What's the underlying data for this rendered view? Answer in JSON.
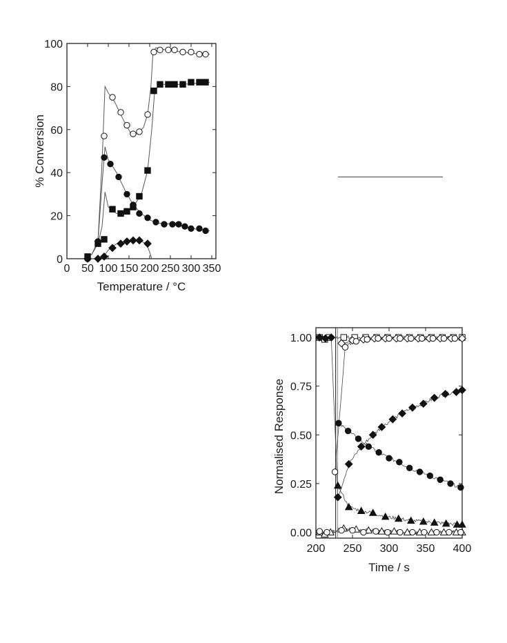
{
  "chart_data": [
    {
      "type": "line",
      "title": "",
      "xlabel": "Temperature / °C",
      "ylabel": "% Conversion",
      "xlim": [
        0,
        360
      ],
      "ylim": [
        0,
        100
      ],
      "xticks": [
        0,
        50,
        100,
        150,
        200,
        250,
        300,
        350
      ],
      "yticks": [
        0,
        20,
        40,
        60,
        80,
        100
      ],
      "series": [
        {
          "marker": "open-circle",
          "points": [
            [
              50,
              0
            ],
            [
              75,
              8
            ],
            [
              90,
              57
            ],
            [
              110,
              75
            ],
            [
              130,
              68
            ],
            [
              145,
              62
            ],
            [
              160,
              58
            ],
            [
              175,
              59
            ],
            [
              195,
              67
            ],
            [
              210,
              96
            ],
            [
              225,
              97
            ],
            [
              245,
              97
            ],
            [
              260,
              97
            ],
            [
              280,
              96
            ],
            [
              300,
              96
            ],
            [
              320,
              95
            ],
            [
              335,
              95
            ]
          ],
          "curve": [
            [
              40,
              0
            ],
            [
              60,
              2
            ],
            [
              75,
              8
            ],
            [
              85,
              45
            ],
            [
              92,
              80
            ],
            [
              100,
              77
            ],
            [
              115,
              73
            ],
            [
              135,
              65
            ],
            [
              155,
              58
            ],
            [
              170,
              58
            ],
            [
              185,
              61
            ],
            [
              195,
              67
            ],
            [
              203,
              80
            ],
            [
              208,
              96
            ],
            [
              215,
              98
            ],
            [
              240,
              97
            ],
            [
              280,
              96
            ],
            [
              320,
              95
            ],
            [
              345,
              95
            ]
          ]
        },
        {
          "marker": "filled-square",
          "points": [
            [
              50,
              1
            ],
            [
              75,
              7
            ],
            [
              90,
              9
            ],
            [
              110,
              23
            ],
            [
              130,
              21
            ],
            [
              145,
              22
            ],
            [
              160,
              24
            ],
            [
              175,
              29
            ],
            [
              195,
              41
            ],
            [
              210,
              78
            ],
            [
              225,
              81
            ],
            [
              245,
              81
            ],
            [
              260,
              81
            ],
            [
              280,
              81
            ],
            [
              300,
              82
            ],
            [
              320,
              82
            ],
            [
              335,
              82
            ]
          ],
          "curve": [
            [
              40,
              0
            ],
            [
              60,
              2
            ],
            [
              75,
              7
            ],
            [
              85,
              15
            ],
            [
              92,
              31
            ],
            [
              100,
              24
            ],
            [
              120,
              21
            ],
            [
              140,
              22
            ],
            [
              160,
              24
            ],
            [
              180,
              30
            ],
            [
              195,
              41
            ],
            [
              205,
              60
            ],
            [
              212,
              78
            ],
            [
              225,
              81
            ],
            [
              280,
              81
            ],
            [
              345,
              82
            ]
          ]
        },
        {
          "marker": "filled-circle",
          "points": [
            [
              50,
              0
            ],
            [
              75,
              8
            ],
            [
              90,
              47
            ],
            [
              105,
              44
            ],
            [
              125,
              38
            ],
            [
              145,
              30
            ],
            [
              160,
              25
            ],
            [
              175,
              21
            ],
            [
              195,
              19
            ],
            [
              215,
              17
            ],
            [
              235,
              16
            ],
            [
              255,
              16
            ],
            [
              270,
              16
            ],
            [
              285,
              15
            ],
            [
              300,
              14
            ],
            [
              320,
              14
            ],
            [
              335,
              13
            ]
          ],
          "curve": [
            [
              40,
              0
            ],
            [
              60,
              2
            ],
            [
              75,
              8
            ],
            [
              85,
              35
            ],
            [
              92,
              52
            ],
            [
              100,
              46
            ],
            [
              120,
              40
            ],
            [
              140,
              32
            ],
            [
              160,
              25
            ],
            [
              180,
              21
            ],
            [
              200,
              18
            ],
            [
              220,
              16.5
            ],
            [
              260,
              16
            ],
            [
              300,
              14
            ],
            [
              345,
              13
            ]
          ]
        },
        {
          "marker": "filled-diamond",
          "points": [
            [
              50,
              0
            ],
            [
              75,
              0
            ],
            [
              90,
              1
            ],
            [
              110,
              5
            ],
            [
              130,
              7
            ],
            [
              145,
              8
            ],
            [
              160,
              8.5
            ],
            [
              175,
              8.5
            ],
            [
              195,
              7
            ]
          ],
          "curve": [
            [
              40,
              0
            ],
            [
              80,
              0
            ],
            [
              92,
              2
            ],
            [
              100,
              4
            ],
            [
              120,
              7
            ],
            [
              150,
              8.5
            ],
            [
              175,
              8.5
            ],
            [
              192,
              7
            ],
            [
              200,
              3
            ],
            [
              205,
              0
            ]
          ]
        }
      ]
    },
    {
      "type": "line",
      "title": "",
      "xlabel": "Time / s",
      "ylabel": "Normalised Response",
      "xlim": [
        200,
        400
      ],
      "ylim": [
        -0.03,
        1.05
      ],
      "xticks": [
        200,
        250,
        300,
        350,
        400
      ],
      "yticks": [
        0.0,
        0.25,
        0.5,
        0.75,
        1.0
      ],
      "ytick_labels": [
        "0.00",
        "0.25",
        "0.50",
        "0.75",
        "1.00"
      ],
      "switch_time": 227,
      "series": [
        {
          "marker": "open-square",
          "points": [
            [
              205,
              1.0
            ],
            [
              212,
              0.99
            ],
            [
              218,
              1.0
            ],
            [
              238,
              1.0
            ],
            [
              253,
              1.0
            ],
            [
              268,
              1.0
            ],
            [
              283,
              1.0
            ],
            [
              298,
              1.0
            ],
            [
              313,
              1.0
            ],
            [
              328,
              1.0
            ],
            [
              343,
              1.0
            ],
            [
              358,
              1.0
            ],
            [
              373,
              1.0
            ],
            [
              388,
              1.0
            ],
            [
              400,
              1.0
            ]
          ]
        },
        {
          "marker": "open-diamond",
          "points": [
            [
              235,
              0.97
            ],
            [
              250,
              0.985
            ],
            [
              265,
              0.99
            ],
            [
              280,
              0.995
            ],
            [
              295,
              0.995
            ],
            [
              310,
              0.995
            ],
            [
              325,
              0.995
            ],
            [
              340,
              0.995
            ],
            [
              355,
              0.995
            ],
            [
              370,
              0.995
            ],
            [
              385,
              0.995
            ],
            [
              400,
              0.995
            ]
          ]
        },
        {
          "marker": "open-circle",
          "points": [
            [
              226,
              0.31
            ],
            [
              240,
              0.95
            ],
            [
              255,
              0.98
            ],
            [
              270,
              0.99
            ],
            [
              285,
              0.995
            ],
            [
              300,
              0.995
            ],
            [
              315,
              0.995
            ],
            [
              330,
              0.995
            ],
            [
              345,
              0.995
            ],
            [
              360,
              0.995
            ],
            [
              375,
              0.995
            ],
            [
              390,
              0.995
            ]
          ]
        },
        {
          "marker": "filled-diamond",
          "points": [
            [
              205,
              1.0
            ],
            [
              213,
              0.995
            ],
            [
              221,
              1.0
            ],
            [
              230,
              0.18
            ],
            [
              245,
              0.35
            ],
            [
              262,
              0.44
            ],
            [
              278,
              0.5
            ],
            [
              290,
              0.54
            ],
            [
              305,
              0.58
            ],
            [
              318,
              0.61
            ],
            [
              332,
              0.64
            ],
            [
              347,
              0.66
            ],
            [
              362,
              0.69
            ],
            [
              377,
              0.71
            ],
            [
              392,
              0.72
            ],
            [
              400,
              0.73
            ]
          ]
        },
        {
          "marker": "filled-circle",
          "points": [
            [
              231,
              0.56
            ],
            [
              244,
              0.52
            ],
            [
              258,
              0.48
            ],
            [
              272,
              0.44
            ],
            [
              286,
              0.41
            ],
            [
              300,
              0.38
            ],
            [
              314,
              0.36
            ],
            [
              328,
              0.33
            ],
            [
              342,
              0.31
            ],
            [
              356,
              0.29
            ],
            [
              370,
              0.27
            ],
            [
              384,
              0.25
            ],
            [
              398,
              0.23
            ]
          ]
        },
        {
          "marker": "filled-triangle",
          "points": [
            [
              230,
              0.24
            ],
            [
              245,
              0.13
            ],
            [
              262,
              0.11
            ],
            [
              278,
              0.1
            ],
            [
              295,
              0.08
            ],
            [
              313,
              0.07
            ],
            [
              330,
              0.06
            ],
            [
              347,
              0.055
            ],
            [
              362,
              0.05
            ],
            [
              378,
              0.045
            ],
            [
              393,
              0.04
            ],
            [
              400,
              0.04
            ]
          ]
        },
        {
          "marker": "open-triangle",
          "points": [
            [
              205,
              0.0
            ],
            [
              212,
              -0.01
            ],
            [
              220,
              0.0
            ],
            [
              238,
              0.02
            ],
            [
              255,
              0.015
            ],
            [
              272,
              0.01
            ],
            [
              290,
              0.005
            ],
            [
              307,
              0.005
            ],
            [
              325,
              0.0
            ],
            [
              342,
              0.0
            ],
            [
              358,
              0.0
            ],
            [
              375,
              0.0
            ],
            [
              392,
              0.0
            ],
            [
              400,
              0.0
            ]
          ]
        },
        {
          "marker": "open-circle-low",
          "points": [
            [
              205,
              0.005
            ],
            [
              215,
              0.0
            ],
            [
              235,
              0.01
            ],
            [
              250,
              0.01
            ],
            [
              265,
              0.0
            ],
            [
              282,
              0.005
            ],
            [
              298,
              0.0
            ],
            [
              315,
              0.0
            ],
            [
              332,
              0.0
            ],
            [
              348,
              0.0
            ],
            [
              365,
              0.0
            ],
            [
              382,
              0.0
            ],
            [
              398,
              0.0
            ]
          ]
        }
      ]
    }
  ]
}
